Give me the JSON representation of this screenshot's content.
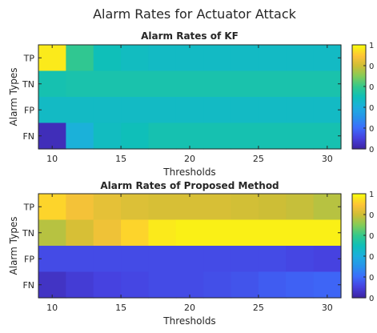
{
  "figure": {
    "title": "Alarm Rates for Actuator Attack"
  },
  "chart_data": [
    {
      "type": "heatmap",
      "title": "Alarm Rates of KF",
      "xlabel": "Thresholds",
      "ylabel": "Alarm Types",
      "x": [
        10,
        12,
        14,
        16,
        18,
        20,
        22,
        24,
        26,
        28,
        30
      ],
      "xlim": [
        9,
        31
      ],
      "xticks": [
        10,
        15,
        20,
        25,
        30
      ],
      "y": [
        "TP",
        "TN",
        "FP",
        "FN"
      ],
      "values": [
        [
          0.97,
          0.59,
          0.5,
          0.48,
          0.47,
          0.47,
          0.47,
          0.47,
          0.47,
          0.47,
          0.47
        ],
        [
          0.52,
          0.53,
          0.53,
          0.53,
          0.53,
          0.53,
          0.53,
          0.53,
          0.53,
          0.53,
          0.53
        ],
        [
          0.47,
          0.47,
          0.47,
          0.47,
          0.47,
          0.47,
          0.47,
          0.47,
          0.47,
          0.47,
          0.47
        ],
        [
          0.03,
          0.41,
          0.48,
          0.5,
          0.52,
          0.52,
          0.52,
          0.52,
          0.52,
          0.52,
          0.52
        ]
      ],
      "colorbar": {
        "ticks": [
          "1",
          "0",
          "0",
          "0",
          "0",
          "0"
        ]
      }
    },
    {
      "type": "heatmap",
      "title": "Alarm Rates of Proposed Method",
      "xlabel": "Thresholds",
      "ylabel": "Alarm Types",
      "x": [
        10,
        12,
        14,
        16,
        18,
        20,
        22,
        24,
        26,
        28,
        30
      ],
      "xlim": [
        9,
        31
      ],
      "xticks": [
        10,
        15,
        20,
        25,
        30
      ],
      "y": [
        "TP",
        "TN",
        "FP",
        "FN"
      ],
      "values": [
        [
          0.93,
          0.88,
          0.85,
          0.83,
          0.82,
          0.82,
          0.82,
          0.81,
          0.8,
          0.79,
          0.77
        ],
        [
          0.77,
          0.82,
          0.87,
          0.93,
          0.97,
          0.98,
          0.98,
          0.98,
          0.98,
          0.98,
          0.98
        ],
        [
          0.12,
          0.12,
          0.12,
          0.12,
          0.12,
          0.12,
          0.12,
          0.12,
          0.12,
          0.11,
          0.1
        ],
        [
          0.05,
          0.08,
          0.1,
          0.11,
          0.12,
          0.12,
          0.13,
          0.14,
          0.16,
          0.17,
          0.18
        ]
      ],
      "colorbar": {
        "ticks": [
          "1",
          "0",
          "0",
          "0",
          "0",
          "0"
        ]
      }
    }
  ]
}
